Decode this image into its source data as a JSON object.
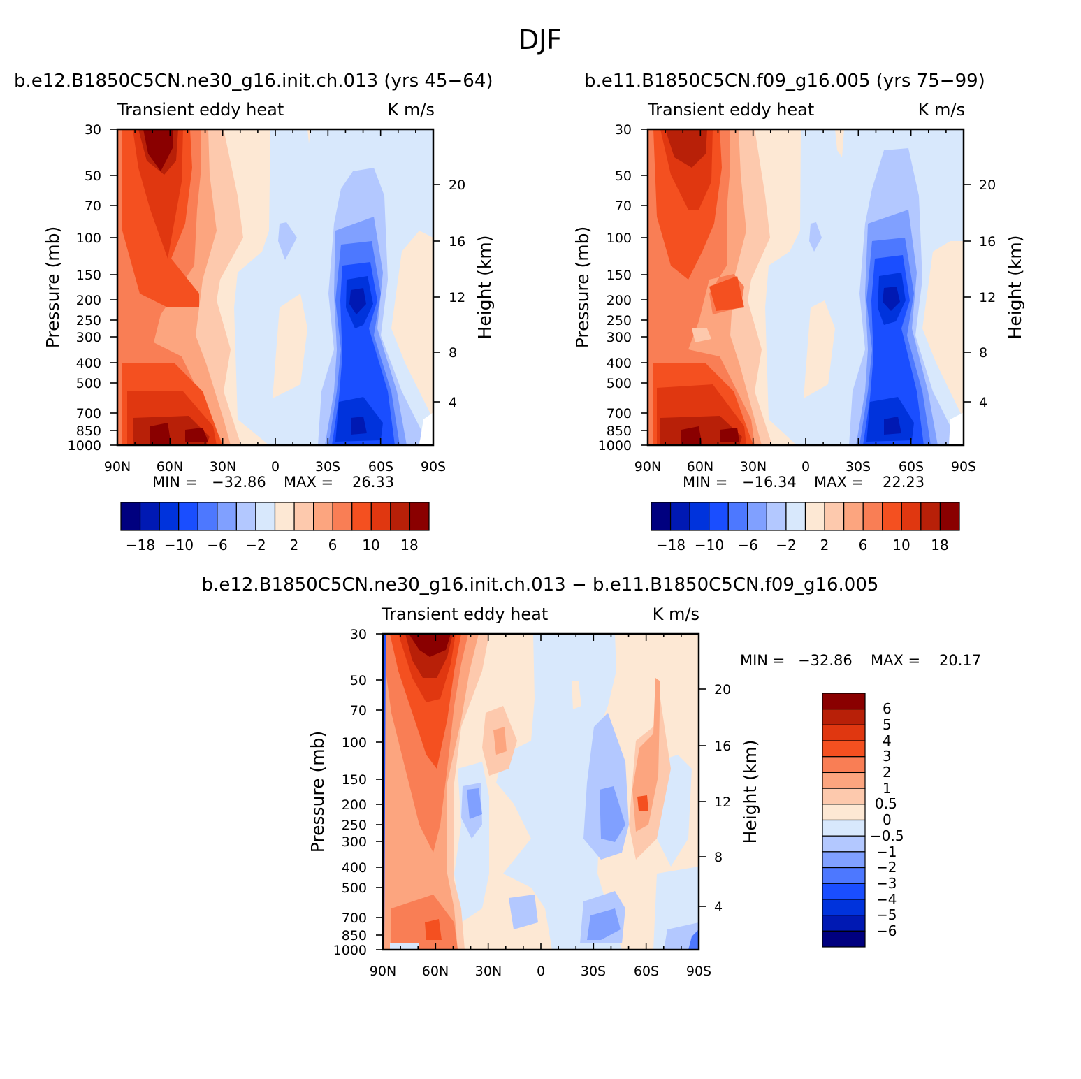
{
  "figure_title": "DJF",
  "chart_data": [
    {
      "type": "heatmap",
      "title": "b.e12.B1850C5CN.ne30_g16.init.ch.013 (yrs 45-64)",
      "left_label": "Transient eddy heat",
      "right_label": "K m/s",
      "ylabel": "Pressure (mb)",
      "ylabel_right": "Height (km)",
      "x_ticks": [
        "90N",
        "60N",
        "30N",
        "0",
        "30S",
        "60S",
        "90S"
      ],
      "y_ticks": [
        "30",
        "50",
        "70",
        "100",
        "150",
        "200",
        "250",
        "300",
        "400",
        "500",
        "700",
        "850",
        "1000"
      ],
      "height_ticks": [
        "20",
        "16",
        "12",
        "8",
        "4"
      ],
      "ylim": [
        1000,
        30
      ],
      "stats": {
        "min_label": "MIN =",
        "min": "-32.86",
        "max_label": "MAX =",
        "max": "26.33"
      },
      "colorbar": {
        "levels": [
          "-18",
          "-10",
          "-6",
          "-2",
          "2",
          "6",
          "10",
          "18"
        ],
        "colors": [
          "#00007f",
          "#0019b3",
          "#0033dc",
          "#1a4eff",
          "#4d78ff",
          "#80a0ff",
          "#b3c8ff",
          "#d8e8fc",
          "#fde8d4",
          "#fdc9ad",
          "#fca57f",
          "#f97e55",
          "#f45020",
          "#e03710",
          "#b82008",
          "#8a0000"
        ]
      },
      "features": [
        {
          "lat": 70,
          "p": 30,
          "value": 26.33
        },
        {
          "lat": 60,
          "p": 900,
          "value": 22
        },
        {
          "lat": 50,
          "p": 900,
          "value": 20
        },
        {
          "lat": -50,
          "p": 200,
          "value": -22
        },
        {
          "lat": -50,
          "p": 880,
          "value": -22
        }
      ]
    },
    {
      "type": "heatmap",
      "title": "b.e11.B1850C5CN.f09_g16.005 (yrs 75-99)",
      "left_label": "Transient eddy heat",
      "right_label": "K m/s",
      "ylabel": "Pressure (mb)",
      "ylabel_right": "Height (km)",
      "x_ticks": [
        "90N",
        "60N",
        "30N",
        "0",
        "30S",
        "60S",
        "90S"
      ],
      "y_ticks": [
        "30",
        "50",
        "70",
        "100",
        "150",
        "200",
        "250",
        "300",
        "400",
        "500",
        "700",
        "850",
        "1000"
      ],
      "height_ticks": [
        "20",
        "16",
        "12",
        "8",
        "4"
      ],
      "ylim": [
        1000,
        30
      ],
      "stats": {
        "min_label": "MIN =",
        "min": "-16.34",
        "max_label": "MAX =",
        "max": "22.23"
      },
      "colorbar": {
        "levels": [
          "-18",
          "-10",
          "-6",
          "-2",
          "2",
          "6",
          "10",
          "18"
        ],
        "colors": [
          "#00007f",
          "#0019b3",
          "#0033dc",
          "#1a4eff",
          "#4d78ff",
          "#80a0ff",
          "#b3c8ff",
          "#d8e8fc",
          "#fde8d4",
          "#fdc9ad",
          "#fca57f",
          "#f97e55",
          "#f45020",
          "#e03710",
          "#b82008",
          "#8a0000"
        ]
      },
      "features": [
        {
          "lat": 70,
          "p": 30,
          "value": 20
        },
        {
          "lat": 65,
          "p": 920,
          "value": 22.23
        },
        {
          "lat": 45,
          "p": 920,
          "value": 20
        },
        {
          "lat": -50,
          "p": 200,
          "value": -16.34
        },
        {
          "lat": -50,
          "p": 880,
          "value": -16
        }
      ]
    },
    {
      "type": "heatmap",
      "title": "b.e12.B1850C5CN.ne30_g16.init.ch.013 - b.e11.B1850C5CN.f09_g16.005",
      "left_label": "Transient eddy heat",
      "right_label": "K m/s",
      "ylabel": "Pressure (mb)",
      "ylabel_right": "Height (km)",
      "x_ticks": [
        "90N",
        "60N",
        "30N",
        "0",
        "30S",
        "60S",
        "90S"
      ],
      "y_ticks": [
        "30",
        "50",
        "70",
        "100",
        "150",
        "200",
        "250",
        "300",
        "400",
        "500",
        "700",
        "850",
        "1000"
      ],
      "height_ticks": [
        "20",
        "16",
        "12",
        "8",
        "4"
      ],
      "ylim": [
        1000,
        30
      ],
      "stats": {
        "min_label": "MIN =",
        "min": "-32.86",
        "max_label": "MAX =",
        "max": "20.17"
      },
      "colorbar": {
        "orientation": "vertical",
        "levels": [
          "6",
          "5",
          "4",
          "3",
          "2",
          "1",
          "0.5",
          "0",
          "-0.5",
          "-1",
          "-2",
          "-3",
          "-4",
          "-5",
          "-6"
        ],
        "colors": [
          "#8a0000",
          "#b82008",
          "#e03710",
          "#f45020",
          "#f97e55",
          "#fca57f",
          "#fdc9ad",
          "#fde8d4",
          "#d8e8fc",
          "#b3c8ff",
          "#80a0ff",
          "#4d78ff",
          "#1a4eff",
          "#0033dc",
          "#0019b3",
          "#00007f"
        ]
      },
      "features": [
        {
          "lat": 62,
          "p": 35,
          "value": 20.17
        },
        {
          "lat": 60,
          "p": 900,
          "value": 4
        },
        {
          "lat": 38,
          "p": 200,
          "value": -3
        },
        {
          "lat": -38,
          "p": 220,
          "value": -3
        },
        {
          "lat": -36,
          "p": 850,
          "value": -4
        },
        {
          "lat": -60,
          "p": 200,
          "value": 3
        }
      ]
    }
  ]
}
